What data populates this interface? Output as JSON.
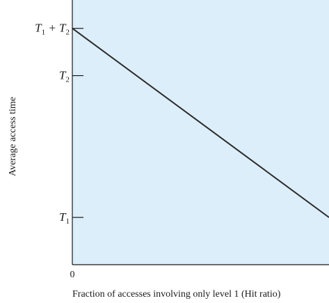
{
  "chart_data": {
    "type": "line",
    "title": "",
    "xlabel": "Fraction of accesses involving only level 1 (Hit ratio)",
    "ylabel": "Average access time",
    "x_tick_labels": [
      "0"
    ],
    "y_ticks": [
      {
        "label": "T",
        "sub": "1",
        "suffix": "",
        "value": 1
      },
      {
        "label": "T",
        "sub": "2",
        "suffix": "",
        "value": 4
      },
      {
        "label": "T",
        "sub": "1",
        "suffix": " + T",
        "sub2": "2",
        "value": 5
      }
    ],
    "xlim": [
      0,
      1
    ],
    "ylim": [
      0,
      5.6
    ],
    "series": [
      {
        "values": [
          {
            "x": 0,
            "y": 5
          },
          {
            "x": 1,
            "y": 1
          }
        ]
      }
    ],
    "plot_background": "#dceefa",
    "line_color": "#2b2b2b",
    "grid": false
  }
}
